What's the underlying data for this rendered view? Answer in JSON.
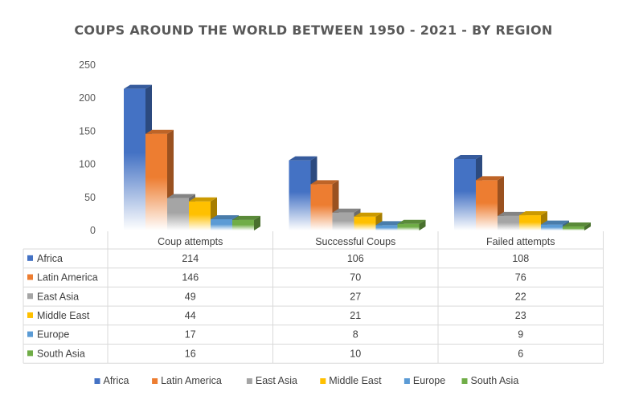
{
  "chart_data": {
    "type": "bar",
    "title": "COUPS AROUND THE WORLD BETWEEN 1950 - 2021 - BY REGION",
    "categories": [
      "Coup attempts",
      "Successful Coups",
      "Failed attempts"
    ],
    "series": [
      {
        "name": "Africa",
        "values": [
          214,
          106,
          108
        ],
        "color": "#4472C4"
      },
      {
        "name": "Latin America",
        "values": [
          146,
          70,
          76
        ],
        "color": "#ED7D31"
      },
      {
        "name": "East Asia",
        "values": [
          49,
          27,
          22
        ],
        "color": "#A5A5A5"
      },
      {
        "name": "Middle East",
        "values": [
          44,
          21,
          23
        ],
        "color": "#FFC000"
      },
      {
        "name": "Europe",
        "values": [
          17,
          8,
          9
        ],
        "color": "#5B9BD5"
      },
      {
        "name": "South Asia",
        "values": [
          16,
          10,
          6
        ],
        "color": "#70AD47"
      }
    ],
    "yticks": [
      0,
      50,
      100,
      150,
      200,
      250
    ],
    "ylim": [
      0,
      250
    ],
    "style": "3d-clustered-column",
    "data_table": true,
    "legend_position": "bottom",
    "grid": false
  }
}
